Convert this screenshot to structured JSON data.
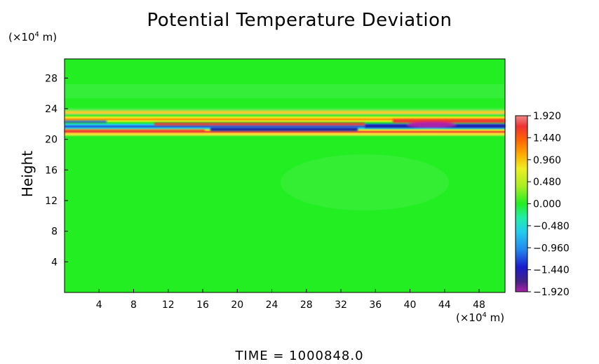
{
  "chart_data": {
    "type": "heatmap",
    "title": "Potential Temperature Deviation",
    "ylabel": "Height",
    "xlabel": "",
    "x_unit_prefix": "(×10",
    "x_unit_exp": "4",
    "x_unit_suffix": " m)",
    "y_unit_prefix": "(×10",
    "y_unit_exp": "4",
    "y_unit_suffix": " m)",
    "x_ticks": [
      "4",
      "8",
      "12",
      "16",
      "20",
      "24",
      "28",
      "32",
      "36",
      "40",
      "44",
      "48"
    ],
    "x_tick_values": [
      4,
      8,
      12,
      16,
      20,
      24,
      28,
      32,
      36,
      40,
      44,
      48
    ],
    "y_ticks": [
      "4",
      "8",
      "12",
      "16",
      "20",
      "24",
      "28"
    ],
    "y_tick_values": [
      4,
      8,
      12,
      16,
      20,
      24,
      28
    ],
    "xlim": [
      0,
      51
    ],
    "ylim": [
      0,
      30.5
    ],
    "colorbar": {
      "labels": [
        "1.920",
        "1.440",
        "0.960",
        "0.480",
        "0.000",
        "−0.480",
        "−0.960",
        "−1.440",
        "−1.920"
      ],
      "values": [
        1.92,
        1.44,
        0.96,
        0.48,
        0.0,
        -0.48,
        -0.96,
        -1.44,
        -1.92
      ],
      "range": [
        -1.92,
        1.92
      ]
    },
    "colors": {
      "background": "#22ee22",
      "positive_peak": "#ee3333",
      "negative_peak": "#1a1aaa"
    },
    "footer": "TIME  =  1000848.0"
  }
}
